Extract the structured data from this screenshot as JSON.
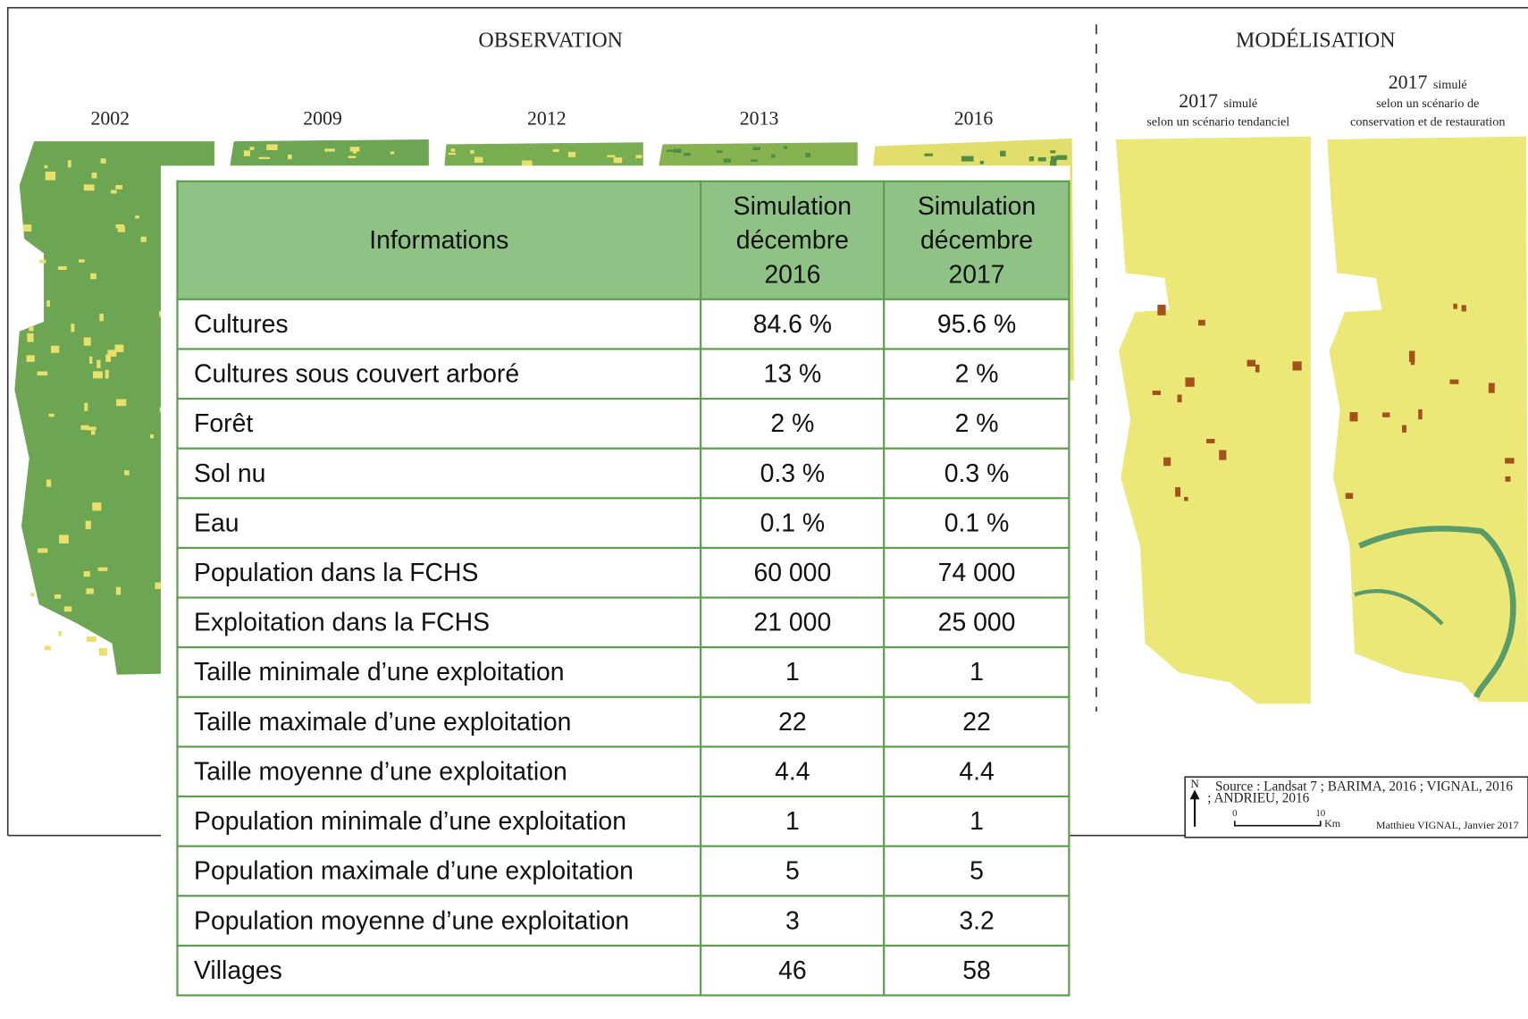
{
  "observation": {
    "title": "OBSERVATION",
    "years": [
      "2002",
      "2009",
      "2012",
      "2013",
      "2016"
    ]
  },
  "modelisation": {
    "title": "MODÉLISATION",
    "maps": [
      {
        "year": "2017",
        "suffix": "simulé",
        "caption": [
          "selon un scénario tendanciel"
        ]
      },
      {
        "year": "2017",
        "suffix": "simulé",
        "caption": [
          "selon un scénario de",
          "conservation et de restauration"
        ]
      }
    ]
  },
  "table": {
    "header": [
      "Informations",
      "Simulation décembre 2016",
      "Simulation décembre 2017"
    ],
    "rows": [
      [
        "Cultures",
        "84.6 %",
        "95.6 %"
      ],
      [
        "Cultures sous couvert arboré",
        "13 %",
        "2 %"
      ],
      [
        "Forêt",
        "2 %",
        "2 %"
      ],
      [
        "Sol nu",
        "0.3 %",
        "0.3 %"
      ],
      [
        "Eau",
        "0.1 %",
        "0.1 %"
      ],
      [
        "Population dans la FCHS",
        "60 000",
        "74 000"
      ],
      [
        "Exploitation dans la FCHS",
        "21 000",
        "25 000"
      ],
      [
        "Taille minimale d’une exploitation",
        "1",
        "1"
      ],
      [
        "Taille maximale d’une exploitation",
        "22",
        "22"
      ],
      [
        "Taille moyenne d’une exploitation",
        "4.4",
        "4.4"
      ],
      [
        "Population minimale d’une exploitation",
        "1",
        "1"
      ],
      [
        "Population maximale d’une exploitation",
        "5",
        "5"
      ],
      [
        "Population moyenne d’une exploitation",
        "3",
        "3.2"
      ],
      [
        "Villages",
        "46",
        "58"
      ]
    ]
  },
  "legend": {
    "north": "N",
    "source": [
      "Source : Landsat 7 ; BARIMA, 2016 ; VIGNAL, 2016",
      "; ANDRIEU, 2016"
    ],
    "scale": [
      "0",
      "10"
    ],
    "unit": "Km",
    "credit": "Matthieu VIGNAL, Janvier 2017"
  }
}
